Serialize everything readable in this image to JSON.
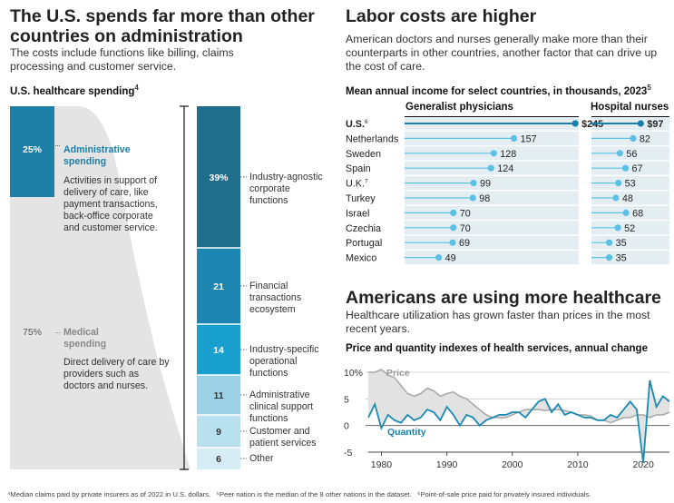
{
  "left": {
    "title": "The U.S. spends far more than other countries on administration",
    "desc": "The costs include functions like billing, claims processing and customer service.",
    "subtitle": "U.S. healthcare spending",
    "subtitle_note": "4",
    "admin": {
      "pct": "25%",
      "label": "Administrative spending",
      "desc": "Activities in support of delivery of care, like payment transactions, back-office corporate and customer service."
    },
    "medical": {
      "pct": "75%",
      "label": "Medical spending",
      "desc": "Direct delivery of care by providers such as doctors and nurses."
    },
    "breakdown": [
      {
        "value": "39%",
        "share": 39,
        "label": "Industry-agnostic corporate functions",
        "color": "#1f6e8c"
      },
      {
        "value": "21",
        "share": 21,
        "label": "Financial transactions ecosystem",
        "color": "#1d86b0"
      },
      {
        "value": "14",
        "share": 14,
        "label": "Industry-specific operational functions",
        "color": "#1aa0cf"
      },
      {
        "value": "11",
        "share": 11,
        "label": "Administrative clinical support functions",
        "color": "#9dd2e6"
      },
      {
        "value": "9",
        "share": 9,
        "label": "Customer and patient services",
        "color": "#b9e0ee"
      },
      {
        "value": "6",
        "share": 6,
        "label": "Other",
        "color": "#d7edf5"
      }
    ],
    "colors": {
      "admin": "#1d7fa5",
      "medical": "#e4e4e4",
      "admin_text": "#1a7fa8",
      "medical_text": "#888888"
    }
  },
  "right": {
    "title": "Labor costs are higher",
    "desc": "American doctors and nurses generally make more than their counterparts in other countries, another factor that can drive up the cost of care.",
    "subtitle": "Mean annual income for select countries, in thousands, 2023",
    "subtitle_note": "5",
    "col1": "Generalist physicians",
    "col2": "Hospital nurses"
  },
  "bottom": {
    "title": "Americans are using more healthcare",
    "desc": "Healthcare utilization has grown faster than prices in the most recent years.",
    "subtitle": "Price and quantity indexes of health services, annual change"
  },
  "footnotes": {
    "f4": "⁴Median claims paid by private insurers as of 2022 in U.S. dollars.",
    "f5": "⁵Peer nation is the median of the 8 other nations in the dataset.",
    "f6": "⁶Point-of-sale price paid for privately insured individuals."
  },
  "chart_data": [
    {
      "type": "bar",
      "title": "Mean annual income for select countries, in thousands, 2023",
      "categories": [
        "U.S.",
        "Netherlands",
        "Sweden",
        "Spain",
        "U.K.",
        "Turkey",
        "Israel",
        "Czechia",
        "Portugal",
        "Mexico"
      ],
      "category_notes": {
        "U.S.": "6",
        "U.K.": "7"
      },
      "series": [
        {
          "name": "Generalist physicians",
          "values": [
            245,
            157,
            128,
            124,
            99,
            98,
            70,
            70,
            69,
            49
          ],
          "labels": [
            "$245",
            "157",
            "128",
            "124",
            "99",
            "98",
            "70",
            "70",
            "69",
            "49"
          ],
          "max": 250
        },
        {
          "name": "Hospital nurses",
          "values": [
            97,
            82,
            56,
            67,
            53,
            48,
            68,
            52,
            35,
            35
          ],
          "labels": [
            "$97",
            "82",
            "56",
            "67",
            "53",
            "48",
            "68",
            "52",
            "35",
            "35"
          ],
          "max": 100
        }
      ],
      "colors": {
        "highlight": "#1a7fa8",
        "dot": "#5bc0e3",
        "track": "#e3eef2"
      }
    },
    {
      "type": "line",
      "title": "Price and quantity indexes of health services, annual change",
      "xlim": [
        1978,
        2024
      ],
      "ylim": [
        -5,
        10
      ],
      "yticks": [
        "10%",
        "5",
        "0",
        "-5"
      ],
      "ytick_values": [
        10,
        5,
        0,
        -5
      ],
      "xticks": [
        "1980",
        "1990",
        "2000",
        "2010",
        "2020"
      ],
      "xtick_values": [
        1980,
        1990,
        2000,
        2010,
        2020
      ],
      "grid": true,
      "series": [
        {
          "name": "Price",
          "color": "#aaaaaa",
          "x": [
            1978,
            1979,
            1980,
            1981,
            1982,
            1983,
            1984,
            1985,
            1986,
            1987,
            1988,
            1989,
            1990,
            1991,
            1992,
            1993,
            1994,
            1995,
            1996,
            1997,
            1998,
            1999,
            2000,
            2001,
            2002,
            2003,
            2004,
            2005,
            2006,
            2007,
            2008,
            2009,
            2010,
            2011,
            2012,
            2013,
            2014,
            2015,
            2016,
            2017,
            2018,
            2019,
            2020,
            2021,
            2022,
            2023,
            2024
          ],
          "y": [
            10,
            10,
            10.5,
            9.5,
            9,
            7.5,
            6,
            5.5,
            6,
            7,
            6.5,
            5.5,
            6,
            6.3,
            5.5,
            5,
            4,
            3,
            2,
            1.5,
            1.5,
            1.5,
            2,
            2.5,
            3,
            3,
            3,
            2.8,
            3,
            3,
            2.8,
            2.5,
            2,
            2,
            1.8,
            1,
            1,
            0.5,
            1,
            1.5,
            1.5,
            2,
            2,
            1.5,
            2,
            2,
            2.5
          ]
        },
        {
          "name": "Quantity",
          "color": "#1a8ab0",
          "x": [
            1978,
            1979,
            1980,
            1981,
            1982,
            1983,
            1984,
            1985,
            1986,
            1987,
            1988,
            1989,
            1990,
            1991,
            1992,
            1993,
            1994,
            1995,
            1996,
            1997,
            1998,
            1999,
            2000,
            2001,
            2002,
            2003,
            2004,
            2005,
            2006,
            2007,
            2008,
            2009,
            2010,
            2011,
            2012,
            2013,
            2014,
            2015,
            2016,
            2017,
            2018,
            2019,
            2020,
            2021,
            2022,
            2023,
            2024
          ],
          "y": [
            1.5,
            4,
            -0.5,
            2,
            1,
            0.5,
            2,
            1,
            1.5,
            3,
            2.5,
            1,
            3.5,
            2,
            0,
            2,
            1.5,
            0,
            1,
            1.5,
            2,
            2,
            2.5,
            2.5,
            1.5,
            3,
            4.5,
            5,
            2.5,
            4,
            2,
            2.5,
            2,
            1.5,
            1.5,
            1,
            1,
            2,
            1.5,
            3,
            4.5,
            3,
            -7,
            8.5,
            3.5,
            5.5,
            4.5
          ]
        }
      ]
    }
  ]
}
